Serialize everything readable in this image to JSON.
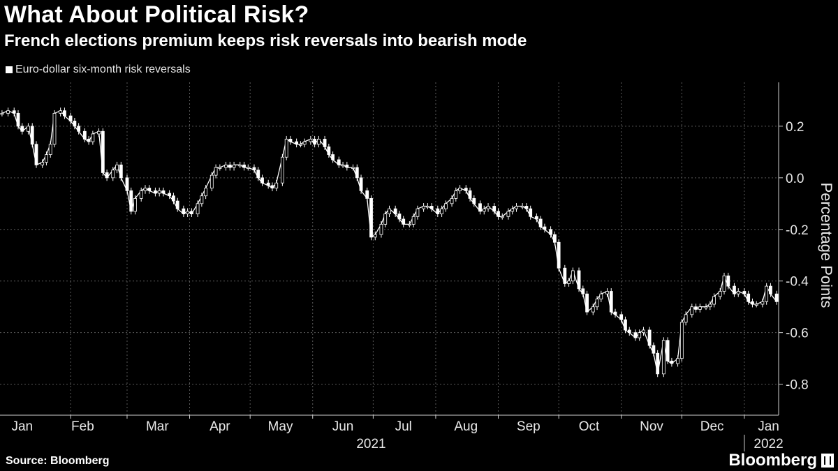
{
  "header": {
    "title": "What About Political Risk?",
    "subtitle": "French elections premium keeps risk reversals into bearish mode"
  },
  "legend": {
    "label": "Euro-dollar six-month risk reversals"
  },
  "footer": {
    "source": "Source: Bloomberg",
    "brand": "Bloomberg"
  },
  "colors": {
    "background": "#000000",
    "series": "#ffffff",
    "grid": "#555555"
  },
  "chart_data": {
    "type": "candlestick",
    "title": "What About Political Risk?",
    "subtitle": "French elections premium keeps risk reversals into bearish mode",
    "ylabel": "Percentage Points",
    "ylim": [
      -0.92,
      0.37
    ],
    "yticks": [
      "0.2",
      "0.0",
      "-0.2",
      "-0.4",
      "-0.6",
      "-0.8"
    ],
    "ytick_values": [
      0.2,
      0.0,
      -0.2,
      -0.4,
      -0.6,
      -0.8
    ],
    "xlim": [
      "2020-12-28",
      "2022-01-18"
    ],
    "month_labels": [
      {
        "label": "Jan",
        "date": "2021-01-08"
      },
      {
        "label": "Feb",
        "date": "2021-02-07"
      },
      {
        "label": "Mar",
        "date": "2021-03-16"
      },
      {
        "label": "Apr",
        "date": "2021-04-16"
      },
      {
        "label": "May",
        "date": "2021-05-16"
      },
      {
        "label": "Jun",
        "date": "2021-06-16"
      },
      {
        "label": "Jul",
        "date": "2021-07-16"
      },
      {
        "label": "Aug",
        "date": "2021-08-16"
      },
      {
        "label": "Sep",
        "date": "2021-09-16"
      },
      {
        "label": "Oct",
        "date": "2021-10-16"
      },
      {
        "label": "Nov",
        "date": "2021-11-16"
      },
      {
        "label": "Dec",
        "date": "2021-12-16"
      },
      {
        "label": "Jan",
        "date": "2022-01-13"
      }
    ],
    "month_gridlines": [
      "2021-02-01",
      "2021-03-01",
      "2021-04-01",
      "2021-05-01",
      "2021-06-01",
      "2021-07-01",
      "2021-08-01",
      "2021-09-01",
      "2021-10-01",
      "2021-11-01",
      "2021-12-01",
      "2022-01-01"
    ],
    "year_labels": [
      {
        "label": "2021",
        "date": "2021-06-30"
      },
      {
        "label": "2022",
        "date": "2022-01-13"
      }
    ],
    "grid": true,
    "legend_position": "top-left",
    "series": [
      {
        "name": "Euro-dollar six-month risk reversals",
        "points": [
          {
            "date": "2020-12-29",
            "value": 0.25
          },
          {
            "date": "2021-01-01",
            "value": 0.26
          },
          {
            "date": "2021-01-04",
            "value": 0.25
          },
          {
            "date": "2021-01-06",
            "value": 0.2
          },
          {
            "date": "2021-01-08",
            "value": 0.18
          },
          {
            "date": "2021-01-11",
            "value": 0.2
          },
          {
            "date": "2021-01-13",
            "value": 0.13
          },
          {
            "date": "2021-01-15",
            "value": 0.05
          },
          {
            "date": "2021-01-18",
            "value": 0.06
          },
          {
            "date": "2021-01-20",
            "value": 0.09
          },
          {
            "date": "2021-01-22",
            "value": 0.13
          },
          {
            "date": "2021-01-24",
            "value": 0.25
          },
          {
            "date": "2021-01-27",
            "value": 0.26
          },
          {
            "date": "2021-01-29",
            "value": 0.24
          },
          {
            "date": "2021-02-01",
            "value": 0.22
          },
          {
            "date": "2021-02-03",
            "value": 0.2
          },
          {
            "date": "2021-02-05",
            "value": 0.18
          },
          {
            "date": "2021-02-08",
            "value": 0.15
          },
          {
            "date": "2021-02-10",
            "value": 0.14
          },
          {
            "date": "2021-02-12",
            "value": 0.17
          },
          {
            "date": "2021-02-15",
            "value": 0.18
          },
          {
            "date": "2021-02-17",
            "value": 0.02
          },
          {
            "date": "2021-02-19",
            "value": 0.0
          },
          {
            "date": "2021-02-22",
            "value": 0.03
          },
          {
            "date": "2021-02-24",
            "value": 0.05
          },
          {
            "date": "2021-02-26",
            "value": 0.0
          },
          {
            "date": "2021-03-01",
            "value": -0.05
          },
          {
            "date": "2021-03-03",
            "value": -0.13
          },
          {
            "date": "2021-03-05",
            "value": -0.08
          },
          {
            "date": "2021-03-08",
            "value": -0.05
          },
          {
            "date": "2021-03-10",
            "value": -0.04
          },
          {
            "date": "2021-03-12",
            "value": -0.05
          },
          {
            "date": "2021-03-15",
            "value": -0.06
          },
          {
            "date": "2021-03-17",
            "value": -0.05
          },
          {
            "date": "2021-03-19",
            "value": -0.06
          },
          {
            "date": "2021-03-22",
            "value": -0.07
          },
          {
            "date": "2021-03-24",
            "value": -0.09
          },
          {
            "date": "2021-03-26",
            "value": -0.12
          },
          {
            "date": "2021-03-29",
            "value": -0.14
          },
          {
            "date": "2021-03-31",
            "value": -0.13
          },
          {
            "date": "2021-04-02",
            "value": -0.14
          },
          {
            "date": "2021-04-05",
            "value": -0.1
          },
          {
            "date": "2021-04-07",
            "value": -0.07
          },
          {
            "date": "2021-04-09",
            "value": -0.04
          },
          {
            "date": "2021-04-12",
            "value": 0.01
          },
          {
            "date": "2021-04-14",
            "value": 0.04
          },
          {
            "date": "2021-04-16",
            "value": 0.04
          },
          {
            "date": "2021-04-19",
            "value": 0.05
          },
          {
            "date": "2021-04-21",
            "value": 0.04
          },
          {
            "date": "2021-04-23",
            "value": 0.05
          },
          {
            "date": "2021-04-26",
            "value": 0.05
          },
          {
            "date": "2021-04-28",
            "value": 0.04
          },
          {
            "date": "2021-04-30",
            "value": 0.04
          },
          {
            "date": "2021-05-03",
            "value": 0.03
          },
          {
            "date": "2021-05-05",
            "value": 0.0
          },
          {
            "date": "2021-05-07",
            "value": -0.02
          },
          {
            "date": "2021-05-10",
            "value": -0.03
          },
          {
            "date": "2021-05-12",
            "value": -0.04
          },
          {
            "date": "2021-05-14",
            "value": -0.02
          },
          {
            "date": "2021-05-17",
            "value": 0.08
          },
          {
            "date": "2021-05-19",
            "value": 0.15
          },
          {
            "date": "2021-05-21",
            "value": 0.14
          },
          {
            "date": "2021-05-24",
            "value": 0.13
          },
          {
            "date": "2021-05-26",
            "value": 0.13
          },
          {
            "date": "2021-05-28",
            "value": 0.14
          },
          {
            "date": "2021-05-31",
            "value": 0.15
          },
          {
            "date": "2021-06-02",
            "value": 0.13
          },
          {
            "date": "2021-06-04",
            "value": 0.15
          },
          {
            "date": "2021-06-07",
            "value": 0.12
          },
          {
            "date": "2021-06-09",
            "value": 0.09
          },
          {
            "date": "2021-06-11",
            "value": 0.07
          },
          {
            "date": "2021-06-14",
            "value": 0.05
          },
          {
            "date": "2021-06-16",
            "value": 0.05
          },
          {
            "date": "2021-06-18",
            "value": 0.04
          },
          {
            "date": "2021-06-21",
            "value": 0.04
          },
          {
            "date": "2021-06-23",
            "value": 0.0
          },
          {
            "date": "2021-06-25",
            "value": -0.05
          },
          {
            "date": "2021-06-28",
            "value": -0.08
          },
          {
            "date": "2021-06-30",
            "value": -0.23
          },
          {
            "date": "2021-07-02",
            "value": -0.22
          },
          {
            "date": "2021-07-05",
            "value": -0.18
          },
          {
            "date": "2021-07-07",
            "value": -0.14
          },
          {
            "date": "2021-07-09",
            "value": -0.12
          },
          {
            "date": "2021-07-12",
            "value": -0.14
          },
          {
            "date": "2021-07-14",
            "value": -0.16
          },
          {
            "date": "2021-07-16",
            "value": -0.18
          },
          {
            "date": "2021-07-19",
            "value": -0.18
          },
          {
            "date": "2021-07-21",
            "value": -0.15
          },
          {
            "date": "2021-07-23",
            "value": -0.12
          },
          {
            "date": "2021-07-26",
            "value": -0.11
          },
          {
            "date": "2021-07-28",
            "value": -0.11
          },
          {
            "date": "2021-07-30",
            "value": -0.12
          },
          {
            "date": "2021-08-02",
            "value": -0.14
          },
          {
            "date": "2021-08-04",
            "value": -0.12
          },
          {
            "date": "2021-08-06",
            "value": -0.1
          },
          {
            "date": "2021-08-09",
            "value": -0.08
          },
          {
            "date": "2021-08-11",
            "value": -0.05
          },
          {
            "date": "2021-08-13",
            "value": -0.04
          },
          {
            "date": "2021-08-16",
            "value": -0.05
          },
          {
            "date": "2021-08-18",
            "value": -0.08
          },
          {
            "date": "2021-08-20",
            "value": -0.1
          },
          {
            "date": "2021-08-23",
            "value": -0.13
          },
          {
            "date": "2021-08-25",
            "value": -0.12
          },
          {
            "date": "2021-08-27",
            "value": -0.11
          },
          {
            "date": "2021-08-30",
            "value": -0.13
          },
          {
            "date": "2021-09-01",
            "value": -0.15
          },
          {
            "date": "2021-09-03",
            "value": -0.15
          },
          {
            "date": "2021-09-06",
            "value": -0.13
          },
          {
            "date": "2021-09-08",
            "value": -0.12
          },
          {
            "date": "2021-09-10",
            "value": -0.11
          },
          {
            "date": "2021-09-13",
            "value": -0.11
          },
          {
            "date": "2021-09-15",
            "value": -0.12
          },
          {
            "date": "2021-09-17",
            "value": -0.15
          },
          {
            "date": "2021-09-20",
            "value": -0.16
          },
          {
            "date": "2021-09-22",
            "value": -0.19
          },
          {
            "date": "2021-09-24",
            "value": -0.2
          },
          {
            "date": "2021-09-27",
            "value": -0.22
          },
          {
            "date": "2021-09-29",
            "value": -0.25
          },
          {
            "date": "2021-10-01",
            "value": -0.35
          },
          {
            "date": "2021-10-04",
            "value": -0.41
          },
          {
            "date": "2021-10-06",
            "value": -0.4
          },
          {
            "date": "2021-10-08",
            "value": -0.36
          },
          {
            "date": "2021-10-11",
            "value": -0.43
          },
          {
            "date": "2021-10-13",
            "value": -0.45
          },
          {
            "date": "2021-10-15",
            "value": -0.52
          },
          {
            "date": "2021-10-18",
            "value": -0.5
          },
          {
            "date": "2021-10-20",
            "value": -0.47
          },
          {
            "date": "2021-10-22",
            "value": -0.45
          },
          {
            "date": "2021-10-25",
            "value": -0.44
          },
          {
            "date": "2021-10-27",
            "value": -0.52
          },
          {
            "date": "2021-10-29",
            "value": -0.53
          },
          {
            "date": "2021-11-01",
            "value": -0.55
          },
          {
            "date": "2021-11-03",
            "value": -0.59
          },
          {
            "date": "2021-11-05",
            "value": -0.6
          },
          {
            "date": "2021-11-08",
            "value": -0.62
          },
          {
            "date": "2021-11-10",
            "value": -0.6
          },
          {
            "date": "2021-11-12",
            "value": -0.59
          },
          {
            "date": "2021-11-15",
            "value": -0.65
          },
          {
            "date": "2021-11-17",
            "value": -0.68
          },
          {
            "date": "2021-11-19",
            "value": -0.76
          },
          {
            "date": "2021-11-22",
            "value": -0.63
          },
          {
            "date": "2021-11-24",
            "value": -0.71
          },
          {
            "date": "2021-11-26",
            "value": -0.72
          },
          {
            "date": "2021-11-29",
            "value": -0.7
          },
          {
            "date": "2021-12-01",
            "value": -0.56
          },
          {
            "date": "2021-12-03",
            "value": -0.53
          },
          {
            "date": "2021-12-06",
            "value": -0.5
          },
          {
            "date": "2021-12-08",
            "value": -0.51
          },
          {
            "date": "2021-12-10",
            "value": -0.5
          },
          {
            "date": "2021-12-13",
            "value": -0.5
          },
          {
            "date": "2021-12-15",
            "value": -0.49
          },
          {
            "date": "2021-12-17",
            "value": -0.46
          },
          {
            "date": "2021-12-20",
            "value": -0.44
          },
          {
            "date": "2021-12-22",
            "value": -0.38
          },
          {
            "date": "2021-12-24",
            "value": -0.42
          },
          {
            "date": "2021-12-27",
            "value": -0.45
          },
          {
            "date": "2021-12-29",
            "value": -0.44
          },
          {
            "date": "2022-01-01",
            "value": -0.45
          },
          {
            "date": "2022-01-03",
            "value": -0.48
          },
          {
            "date": "2022-01-05",
            "value": -0.49
          },
          {
            "date": "2022-01-07",
            "value": -0.49
          },
          {
            "date": "2022-01-10",
            "value": -0.48
          },
          {
            "date": "2022-01-12",
            "value": -0.42
          },
          {
            "date": "2022-01-14",
            "value": -0.45
          },
          {
            "date": "2022-01-17",
            "value": -0.48
          }
        ]
      }
    ]
  }
}
